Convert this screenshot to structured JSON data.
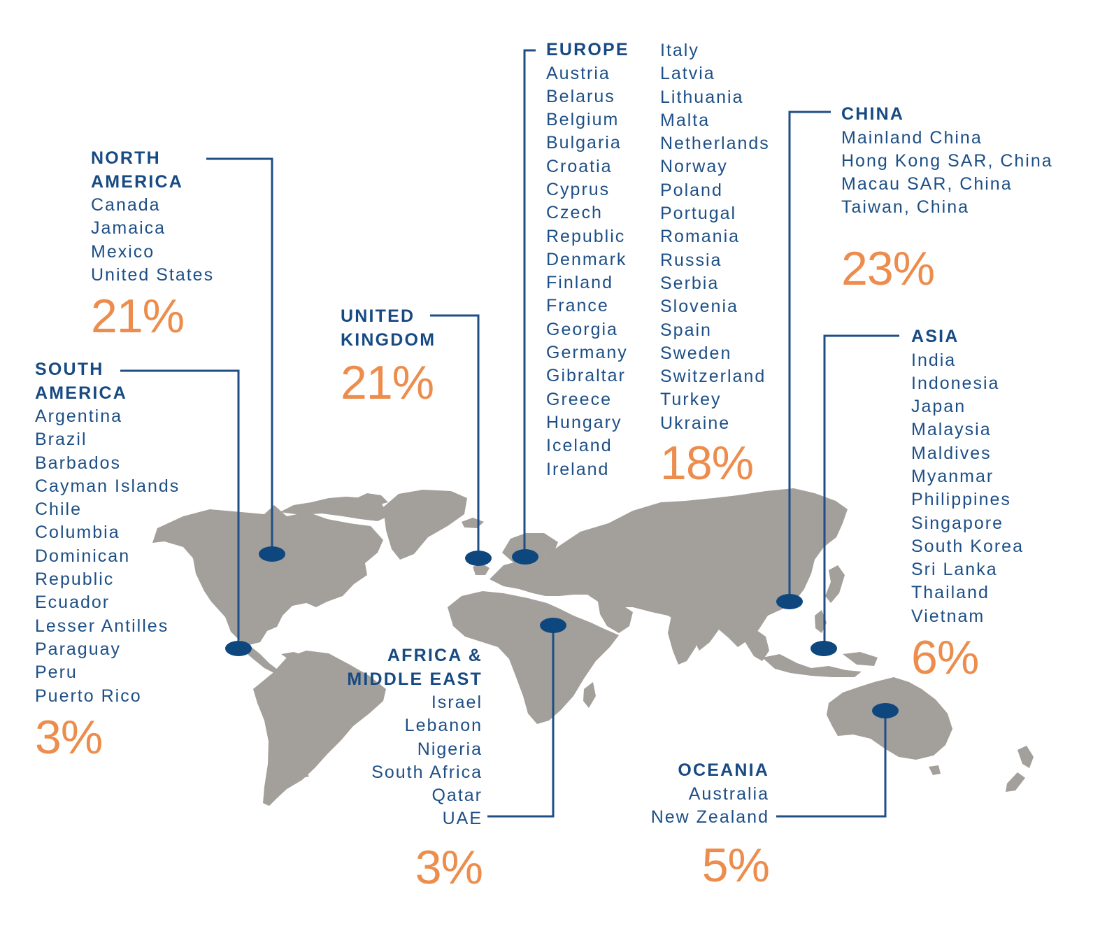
{
  "colors": {
    "title": "#174a82",
    "country_text": "#1d4f86",
    "percent": "#ec8d4d",
    "land": "#a39f9a",
    "leader_line": "#1f4e86",
    "marker": "#0e477e"
  },
  "regions": {
    "north_america": {
      "title": "NORTH\nAMERICA",
      "countries": [
        "Canada",
        "Jamaica",
        "Mexico",
        "United States"
      ],
      "percent": "21%"
    },
    "south_america": {
      "title": "SOUTH\nAMERICA",
      "countries": [
        "Argentina",
        "Brazil",
        "Barbados",
        "Cayman Islands",
        "Chile",
        "Columbia",
        "Dominican",
        "Republic",
        "Ecuador",
        "Lesser Antilles",
        "Paraguay",
        "Peru",
        "Puerto Rico"
      ],
      "percent": "3%"
    },
    "united_kingdom": {
      "title": "UNITED\nKINGDOM",
      "percent": "21%"
    },
    "europe": {
      "title": "EUROPE",
      "countries_col1": [
        "Austria",
        "Belarus",
        "Belgium",
        "Bulgaria",
        "Croatia",
        "Cyprus",
        "Czech",
        "Republic",
        "Denmark",
        "Finland",
        "France",
        "Georgia",
        "Germany",
        "Gibraltar",
        "Greece",
        "Hungary",
        "Iceland",
        "Ireland"
      ],
      "countries_col2": [
        "Italy",
        "Latvia",
        "Lithuania",
        "Malta",
        "Netherlands",
        "Norway",
        "Poland",
        "Portugal",
        "Romania",
        "Russia",
        "Serbia",
        "Slovenia",
        "Spain",
        "Sweden",
        "Switzerland",
        "Turkey",
        "Ukraine"
      ],
      "percent": "18%"
    },
    "china": {
      "title": "CHINA",
      "countries": [
        "Mainland China",
        "Hong Kong SAR, China",
        "Macau SAR, China",
        "Taiwan, China"
      ],
      "percent": "23%"
    },
    "asia": {
      "title": "ASIA",
      "countries": [
        "India",
        "Indonesia",
        "Japan",
        "Malaysia",
        "Maldives",
        "Myanmar",
        "Philippines",
        "Singapore",
        "South Korea",
        "Sri Lanka",
        "Thailand",
        "Vietnam"
      ],
      "percent": "6%"
    },
    "africa_middle_east": {
      "title": "AFRICA &\nMIDDLE EAST",
      "countries": [
        "Israel",
        "Lebanon",
        "Nigeria",
        "South Africa",
        "Qatar",
        "UAE"
      ],
      "percent": "3%"
    },
    "oceania": {
      "title": "OCEANIA",
      "countries": [
        "Australia",
        "New Zealand"
      ],
      "percent": "5%"
    }
  }
}
